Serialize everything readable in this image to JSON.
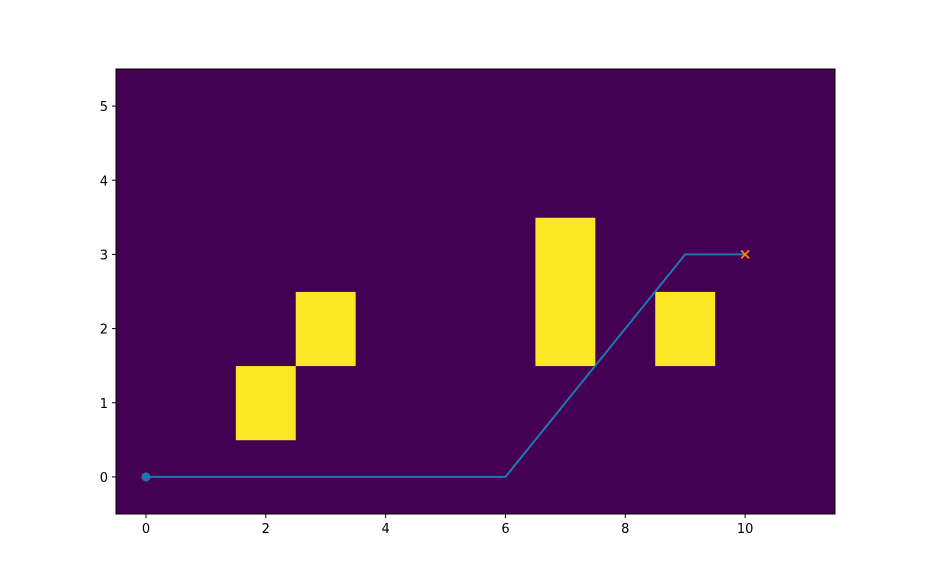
{
  "chart_data": {
    "type": "heatmap",
    "xlim": [
      -0.5,
      11.5
    ],
    "ylim": [
      -0.5,
      5.5
    ],
    "xticks": [
      0,
      2,
      4,
      6,
      8,
      10
    ],
    "yticks": [
      0,
      1,
      2,
      3,
      4,
      5
    ],
    "cell_colors": [
      "#440154",
      "#fde725"
    ],
    "cells": [
      [
        0,
        0,
        0,
        0,
        0,
        0,
        0,
        0,
        0,
        0,
        0,
        0
      ],
      [
        0,
        0,
        1,
        0,
        0,
        0,
        0,
        0,
        0,
        0,
        0,
        0
      ],
      [
        0,
        0,
        0,
        1,
        0,
        0,
        0,
        1,
        0,
        1,
        0,
        0
      ],
      [
        0,
        0,
        0,
        0,
        0,
        0,
        0,
        1,
        0,
        0,
        0,
        0
      ],
      [
        0,
        0,
        0,
        0,
        0,
        0,
        0,
        0,
        0,
        0,
        0,
        0
      ],
      [
        0,
        0,
        0,
        0,
        0,
        0,
        0,
        0,
        0,
        0,
        0,
        0
      ]
    ],
    "series": [
      {
        "color": "#1f77b4",
        "x": [
          0,
          1,
          2,
          3,
          4,
          5,
          6,
          7,
          8,
          9,
          10
        ],
        "values": [
          0,
          0,
          0,
          0,
          0,
          0,
          0,
          1,
          2,
          3,
          3
        ]
      }
    ],
    "start": {
      "x": 0,
      "y": 0,
      "color": "#1f77b4"
    },
    "goal": {
      "x": 10,
      "y": 3,
      "color": "#ff7f0e"
    }
  }
}
